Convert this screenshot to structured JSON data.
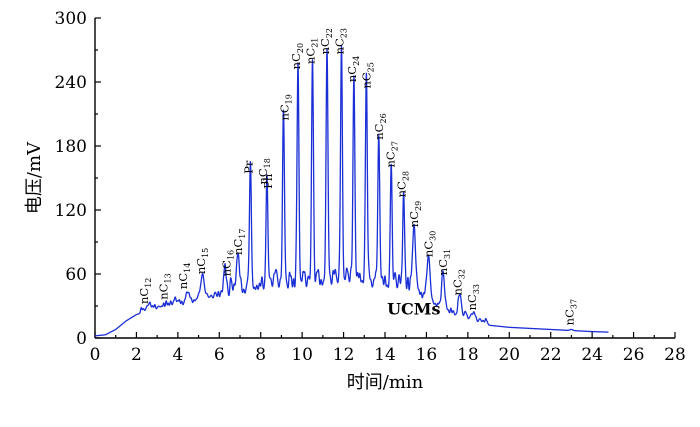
{
  "chart_data": {
    "type": "line",
    "xlabel": "时间/min",
    "ylabel": "电压/mV",
    "xlim": [
      0,
      28
    ],
    "ylim": [
      0,
      300
    ],
    "x_ticks": [
      0,
      2,
      4,
      6,
      8,
      10,
      12,
      14,
      16,
      18,
      20,
      22,
      24,
      26,
      28
    ],
    "y_ticks": [
      0,
      60,
      120,
      180,
      240,
      300
    ],
    "y_tick_labels": [
      "0",
      "60",
      "120",
      "180",
      "240",
      "300"
    ],
    "grid": false,
    "series": [
      {
        "baseline_x": [
          0,
          0.5,
          1,
          1.5,
          2,
          2.5,
          3,
          3.5,
          4,
          4.5,
          5,
          5.5,
          6,
          6.5,
          7,
          7.5,
          8,
          8.5,
          9,
          9.5,
          10,
          10.5,
          11,
          11.5,
          12,
          12.5,
          13,
          13.5,
          14,
          14.5,
          15,
          15.5,
          16,
          16.5,
          17,
          17.5,
          18,
          18.5,
          19,
          19.5,
          20,
          21,
          22,
          23,
          24,
          24.8
        ],
        "baseline_y": [
          2,
          3,
          8,
          16,
          22,
          25,
          26,
          27,
          29,
          31,
          33,
          35,
          36,
          37,
          38,
          39,
          40,
          41,
          42,
          43,
          44,
          45,
          46,
          46,
          46,
          46,
          46,
          45,
          44,
          42,
          40,
          37,
          33,
          28,
          23,
          19,
          16,
          14,
          12,
          11,
          10,
          9,
          8,
          7,
          6,
          5.5
        ],
        "peaks": [
          {
            "x": 2.7,
            "y": 28
          },
          {
            "x": 3.8,
            "y": 32
          },
          {
            "x": 4.5,
            "y": 38
          },
          {
            "x": 5.2,
            "y": 58
          },
          {
            "x": 6.3,
            "y": 52
          },
          {
            "x": 6.9,
            "y": 72
          },
          {
            "x": 7.5,
            "y": 150
          },
          {
            "x": 8.3,
            "y": 140
          },
          {
            "x": 9.1,
            "y": 201
          },
          {
            "x": 9.8,
            "y": 247
          },
          {
            "x": 10.5,
            "y": 252
          },
          {
            "x": 11.2,
            "y": 262
          },
          {
            "x": 11.9,
            "y": 262
          },
          {
            "x": 12.5,
            "y": 236
          },
          {
            "x": 13.1,
            "y": 230
          },
          {
            "x": 13.7,
            "y": 182
          },
          {
            "x": 14.3,
            "y": 156
          },
          {
            "x": 14.9,
            "y": 127
          },
          {
            "x": 15.4,
            "y": 100
          },
          {
            "x": 16.1,
            "y": 72
          },
          {
            "x": 16.8,
            "y": 55
          },
          {
            "x": 17.6,
            "y": 35
          },
          {
            "x": 18.3,
            "y": 22
          },
          {
            "x": 23.0,
            "y": 8
          }
        ]
      }
    ],
    "annotations": [
      {
        "base": "nC",
        "sub": "12",
        "x": 2.55,
        "y": 30
      },
      {
        "base": "nC",
        "sub": "13",
        "x": 3.5,
        "y": 34
      },
      {
        "base": "nC",
        "sub": "14",
        "x": 4.45,
        "y": 44
      },
      {
        "base": "nC",
        "sub": "15",
        "x": 5.3,
        "y": 58
      },
      {
        "base": "nC",
        "sub": "16",
        "x": 6.55,
        "y": 56
      },
      {
        "base": "nC",
        "sub": "17",
        "x": 7.1,
        "y": 76
      },
      {
        "base": "Pr",
        "sub": "",
        "x": 7.6,
        "y": 152
      },
      {
        "base": "Ph",
        "sub": "",
        "x": 8.55,
        "y": 138
      },
      {
        "base": "nC",
        "sub": "18",
        "x": 8.3,
        "y": 142
      },
      {
        "base": "nC",
        "sub": "19",
        "x": 9.35,
        "y": 202
      },
      {
        "base": "nC",
        "sub": "20",
        "x": 9.9,
        "y": 250
      },
      {
        "base": "nC",
        "sub": "21",
        "x": 10.6,
        "y": 255
      },
      {
        "base": "nC",
        "sub": "22",
        "x": 11.3,
        "y": 264
      },
      {
        "base": "nC",
        "sub": "23",
        "x": 12.0,
        "y": 264
      },
      {
        "base": "nC",
        "sub": "24",
        "x": 12.6,
        "y": 238
      },
      {
        "base": "nC",
        "sub": "25",
        "x": 13.3,
        "y": 232
      },
      {
        "base": "nC",
        "sub": "26",
        "x": 13.9,
        "y": 184
      },
      {
        "base": "nC",
        "sub": "27",
        "x": 14.45,
        "y": 158
      },
      {
        "base": "nC",
        "sub": "28",
        "x": 15.0,
        "y": 130
      },
      {
        "base": "nC",
        "sub": "29",
        "x": 15.6,
        "y": 102
      },
      {
        "base": "nC",
        "sub": "30",
        "x": 16.3,
        "y": 74
      },
      {
        "base": "nC",
        "sub": "31",
        "x": 17.0,
        "y": 57
      },
      {
        "base": "nC",
        "sub": "32",
        "x": 17.7,
        "y": 38
      },
      {
        "base": "nC",
        "sub": "33",
        "x": 18.4,
        "y": 24
      },
      {
        "base": "nC",
        "sub": "37",
        "x": 23.1,
        "y": 10
      }
    ],
    "ucm_label": {
      "text": "UCMs",
      "x": 14.1,
      "y": 22
    },
    "colors": {
      "trace": "#1a2fd6",
      "axis": "#000000",
      "background": "#ffffff"
    }
  }
}
